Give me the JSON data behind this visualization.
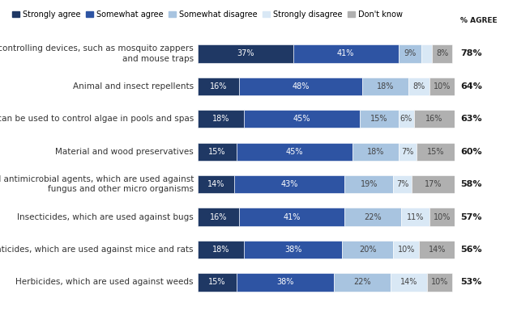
{
  "categories": [
    "Insect- and rodent-controlling devices, such as mosquito zappers\nand mouse traps",
    "Animal and insect repellents",
    "Algicides, which can be used to control algae in pools and spas",
    "Material and wood preservatives",
    "Fungicides and antimicrobial agents, which are used against\nfungus and other micro organisms",
    "Insecticides, which are used against bugs",
    "Rodenticides, which are used against mice and rats",
    "Herbicides, which are used against weeds"
  ],
  "strongly_agree": [
    37,
    16,
    18,
    15,
    14,
    16,
    18,
    15
  ],
  "somewhat_agree": [
    41,
    48,
    45,
    45,
    43,
    41,
    38,
    38
  ],
  "somewhat_disagree": [
    9,
    18,
    15,
    18,
    19,
    22,
    20,
    22
  ],
  "strongly_disagree": [
    4,
    8,
    6,
    7,
    7,
    11,
    10,
    14
  ],
  "dont_know": [
    8,
    10,
    16,
    15,
    17,
    10,
    14,
    10
  ],
  "pct_agree": [
    "78%",
    "64%",
    "63%",
    "60%",
    "58%",
    "57%",
    "56%",
    "53%"
  ],
  "colors": {
    "strongly_agree": "#1f3864",
    "somewhat_agree": "#2e54a3",
    "somewhat_disagree": "#a8c4e0",
    "strongly_disagree": "#d9e8f5",
    "dont_know": "#b0b0b0"
  },
  "legend_labels": [
    "Strongly agree",
    "Somewhat agree",
    "Somewhat disagree",
    "Strongly disagree",
    "Don't know"
  ],
  "background_color": "#ffffff",
  "bar_text_fontsize": 7.0,
  "label_fontsize": 7.5,
  "legend_fontsize": 7.0,
  "pct_fontsize": 8.0
}
